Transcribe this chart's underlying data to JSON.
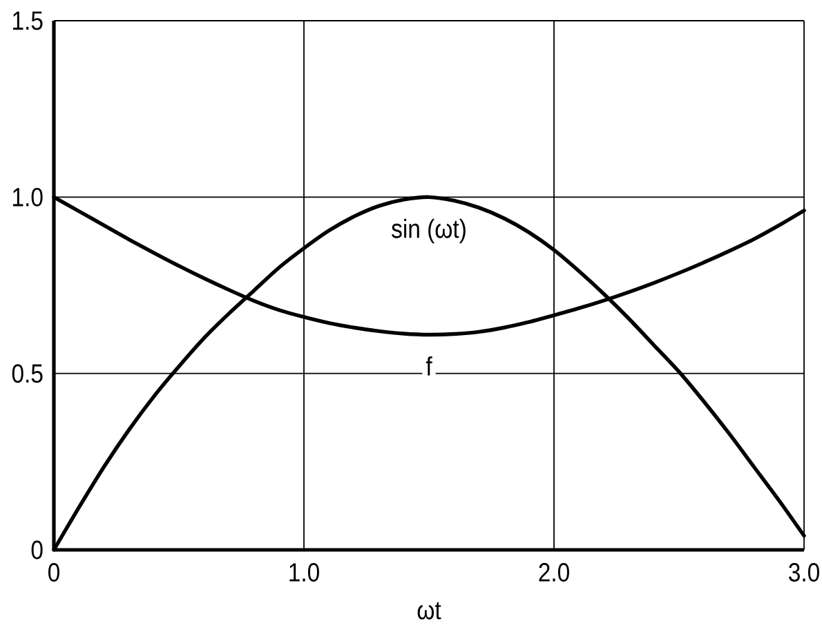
{
  "chart_data": {
    "type": "line",
    "xlabel": "ωt",
    "xlim": [
      0,
      3.0
    ],
    "ylim": [
      0,
      1.5
    ],
    "xticks": [
      0,
      {
        "value": 1.0,
        "label": "1.0"
      },
      {
        "value": 2.0,
        "label": "2.0"
      },
      {
        "value": 3.0,
        "label": "3.0"
      }
    ],
    "yticks": [
      0,
      0.5,
      {
        "value": 1.0,
        "label": "1.0"
      },
      1.5
    ],
    "grid": true,
    "x": [
      0,
      0.1,
      0.2,
      0.3,
      0.4,
      0.5,
      0.6,
      0.7,
      0.8,
      0.9,
      1.0,
      1.1,
      1.2,
      1.3,
      1.4,
      1.5,
      1.6,
      1.7,
      1.8,
      1.9,
      2.0,
      2.1,
      2.2,
      2.3,
      2.4,
      2.5,
      2.6,
      2.7,
      2.8,
      2.9,
      3.0
    ],
    "series": [
      {
        "name": "sin (ωt)",
        "color": "#000000",
        "values": [
          0,
          0.12,
          0.235,
          0.34,
          0.435,
          0.52,
          0.6,
          0.67,
          0.735,
          0.8,
          0.855,
          0.905,
          0.945,
          0.975,
          0.993,
          1.0,
          0.99,
          0.97,
          0.94,
          0.9,
          0.85,
          0.79,
          0.725,
          0.655,
          0.58,
          0.505,
          0.42,
          0.33,
          0.235,
          0.14,
          0.04
        ]
      },
      {
        "name": "f",
        "color": "#000000",
        "values": [
          1.0,
          0.96,
          0.92,
          0.88,
          0.842,
          0.805,
          0.77,
          0.737,
          0.706,
          0.68,
          0.66,
          0.643,
          0.63,
          0.62,
          0.613,
          0.61,
          0.612,
          0.618,
          0.63,
          0.646,
          0.665,
          0.685,
          0.707,
          0.731,
          0.757,
          0.785,
          0.815,
          0.847,
          0.881,
          0.92,
          0.962
        ]
      }
    ]
  }
}
